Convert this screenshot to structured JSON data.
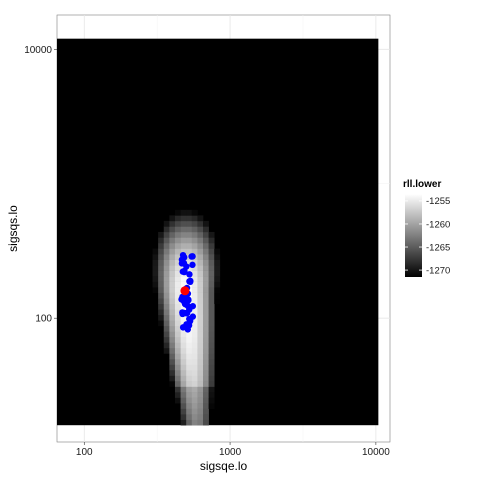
{
  "chart_data": {
    "type": "heatmap",
    "xlabel": "sigsqe.lo",
    "ylabel": "sigsqs.lo",
    "x_scale": "log10",
    "y_scale": "log10",
    "xlim": [
      65,
      12500
    ],
    "ylim": [
      12,
      18000
    ],
    "grid": true,
    "x_ticks": [
      100,
      1000,
      10000
    ],
    "x_tick_labels": [
      "100",
      "1000",
      "10000"
    ],
    "y_ticks": [
      100,
      10000
    ],
    "y_tick_labels": [
      "100",
      "10000"
    ],
    "tile_extent": {
      "x": [
        65,
        10400
      ],
      "y": [
        16,
        12000
      ]
    },
    "fill_scale": {
      "name": "rll.lower",
      "breaks": [
        -1255,
        -1260,
        -1265,
        -1270
      ],
      "break_labels": [
        "-1255",
        "-1260",
        "-1265",
        "-1270"
      ],
      "range": [
        -1271.5,
        -1253.5
      ],
      "low_color": "#000000",
      "high_color": "#ffffff"
    },
    "ridge": {
      "x_center": 500,
      "x_spread_log10": 0.09,
      "y_peak": 160,
      "max_value": -1253.5
    },
    "point_cloud": {
      "color": "#0000ff",
      "x_range": [
        460,
        560
      ],
      "y_range": [
        80,
        300
      ],
      "count": 45
    },
    "best_point": {
      "color": "#ff0000",
      "x": 490,
      "y": 160
    }
  }
}
